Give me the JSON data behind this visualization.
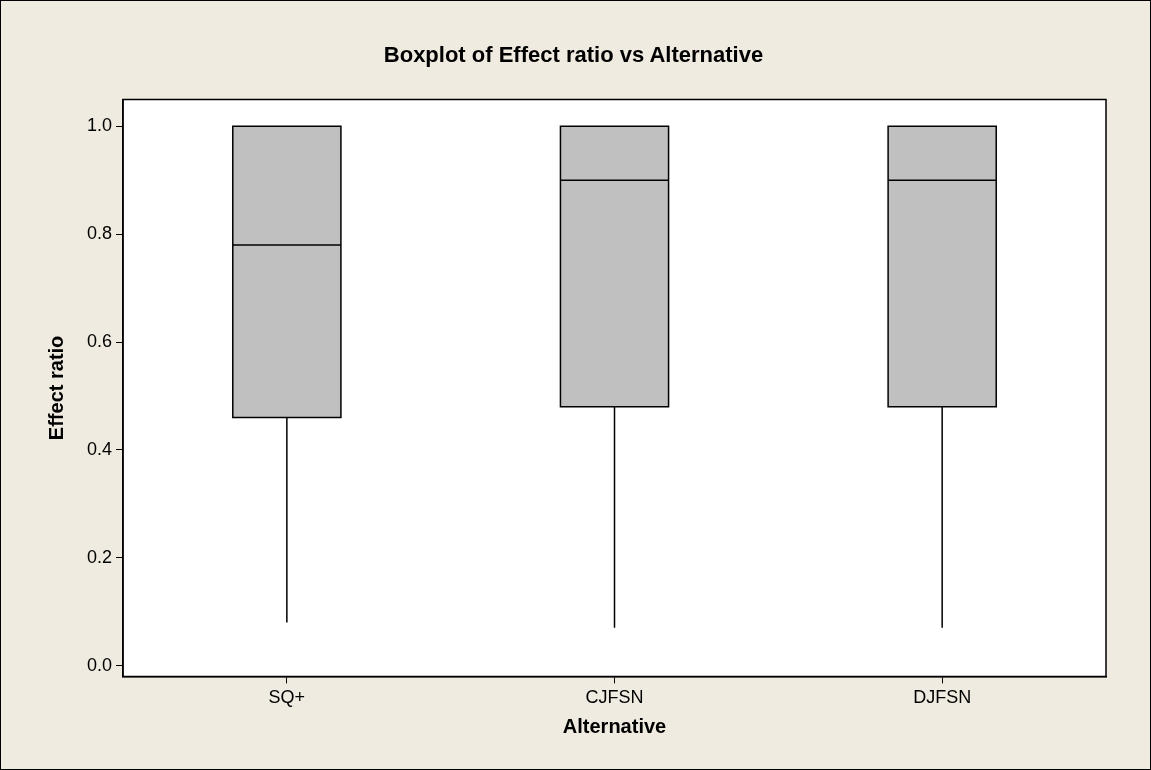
{
  "chart_data": {
    "type": "box",
    "title": "Boxplot of Effect ratio vs Alternative",
    "xlabel": "Alternative",
    "ylabel": "Effect ratio",
    "categories": [
      "SQ+",
      "CJFSN",
      "DJFSN"
    ],
    "color": "#c0c0c0",
    "boxes": [
      {
        "low": 0.08,
        "q1": 0.46,
        "median": 0.78,
        "q3": 1.0,
        "high": 1.0
      },
      {
        "low": 0.07,
        "q1": 0.48,
        "median": 0.9,
        "q3": 1.0,
        "high": 1.0
      },
      {
        "low": 0.07,
        "q1": 0.48,
        "median": 0.9,
        "q3": 1.0,
        "high": 1.0
      }
    ],
    "ylim": [
      -0.02,
      1.05
    ],
    "yticks": [
      {
        "value": 0,
        "label": "0.0"
      },
      {
        "value": 0.2,
        "label": "0.2"
      },
      {
        "value": 0.4,
        "label": "0.4"
      },
      {
        "value": 0.6,
        "label": "0.6"
      },
      {
        "value": 0.8,
        "label": "0.8"
      },
      {
        "value": 1,
        "label": "1.0"
      }
    ],
    "grid": false,
    "legend": false
  }
}
